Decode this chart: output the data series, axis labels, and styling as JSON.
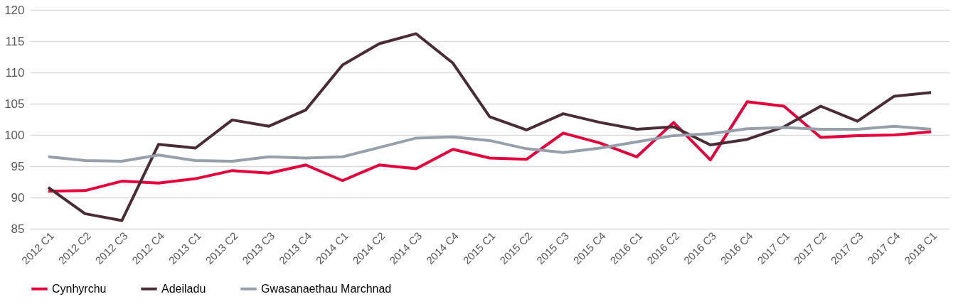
{
  "chart_data": {
    "type": "line",
    "categories": [
      "2012 C1",
      "2012 C2",
      "2012 C3",
      "2012 C4",
      "2013 C1",
      "2013 C2",
      "2013 C3",
      "2013 C4",
      "2014 C1",
      "2014 C2",
      "2014 C3",
      "2014 C4",
      "2015 C1",
      "2015 C2",
      "2015 C3",
      "2015 C4",
      "2016 C1",
      "2016 C2",
      "2016 C3",
      "2016 C4",
      "2017 C1",
      "2017 C2",
      "2017 C3",
      "2017 C4",
      "2018 C1"
    ],
    "series": [
      {
        "name": "Cynhyrchu",
        "color": "#e4003b",
        "values": [
          91.0,
          91.1,
          92.6,
          92.3,
          93.0,
          94.3,
          93.9,
          95.2,
          92.7,
          95.2,
          94.6,
          97.7,
          96.3,
          96.1,
          100.3,
          98.7,
          96.5,
          102.0,
          96.0,
          105.3,
          104.6,
          99.6,
          99.9,
          100.0,
          100.5
        ]
      },
      {
        "name": "Adeiladu",
        "color": "#4a2c35",
        "values": [
          91.6,
          87.4,
          86.3,
          98.5,
          97.9,
          102.4,
          101.4,
          104.0,
          111.2,
          114.6,
          116.2,
          111.5,
          102.9,
          100.8,
          103.4,
          102.0,
          100.9,
          101.3,
          98.4,
          99.3,
          101.3,
          104.6,
          102.2,
          106.2,
          106.8
        ]
      },
      {
        "name": "Gwasanaethau Marchnad",
        "color": "#97a0aa",
        "values": [
          96.5,
          95.9,
          95.8,
          96.8,
          95.9,
          95.8,
          96.5,
          96.3,
          96.5,
          98.0,
          99.5,
          99.7,
          99.1,
          97.8,
          97.2,
          97.9,
          98.9,
          99.9,
          100.2,
          101.0,
          101.2,
          100.9,
          100.9,
          101.4,
          100.9
        ]
      }
    ],
    "ylim": [
      85,
      120
    ],
    "yticks": [
      85,
      90,
      95,
      100,
      105,
      110,
      115,
      120
    ],
    "grid": "y",
    "legend": "bottom",
    "marker": "none",
    "line_style": "solid"
  }
}
